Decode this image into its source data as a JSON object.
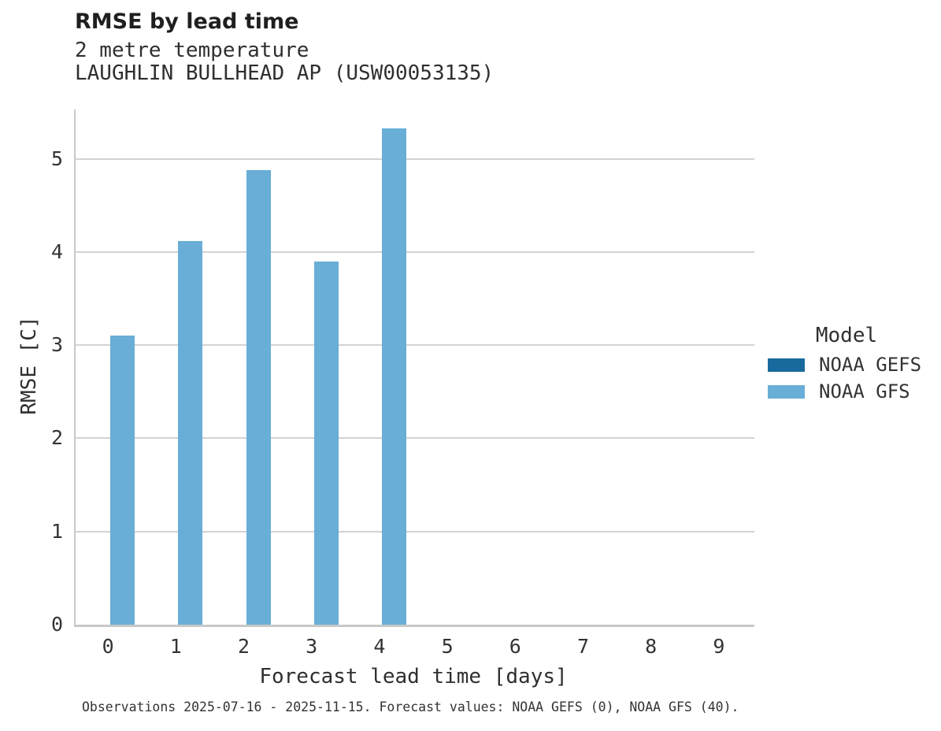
{
  "chart_data": {
    "type": "bar",
    "title": "RMSE by lead time",
    "subtitle_line1": "2 metre temperature",
    "subtitle_line2": "LAUGHLIN BULLHEAD AP (USW00053135)",
    "xlabel": "Forecast lead time [days]",
    "ylabel": "RMSE [C]",
    "legend_title": "Model",
    "legend_position": "right",
    "grid": "horizontal",
    "categories": [
      "0",
      "1",
      "2",
      "3",
      "4",
      "5",
      "6",
      "7",
      "8",
      "9"
    ],
    "yticks": [
      0,
      1,
      2,
      3,
      4,
      5
    ],
    "ylim": [
      0,
      5.53
    ],
    "series": [
      {
        "name": "NOAA GEFS",
        "color": "#186a9d",
        "values": [
          null,
          null,
          null,
          null,
          null,
          null,
          null,
          null,
          null,
          null
        ]
      },
      {
        "name": "NOAA GFS",
        "color": "#68aed6",
        "values": [
          3.1,
          4.12,
          4.88,
          3.9,
          5.33,
          null,
          null,
          null,
          null,
          null
        ]
      }
    ],
    "caption": "Observations 2025-07-16 - 2025-11-15. Forecast values: NOAA GEFS (0), NOAA GFS (40)."
  },
  "colors": {
    "gridline": "#d3d3d3",
    "spine": "#c8c8c8",
    "title_text": "#1f1f1f",
    "body_text": "#333333"
  }
}
